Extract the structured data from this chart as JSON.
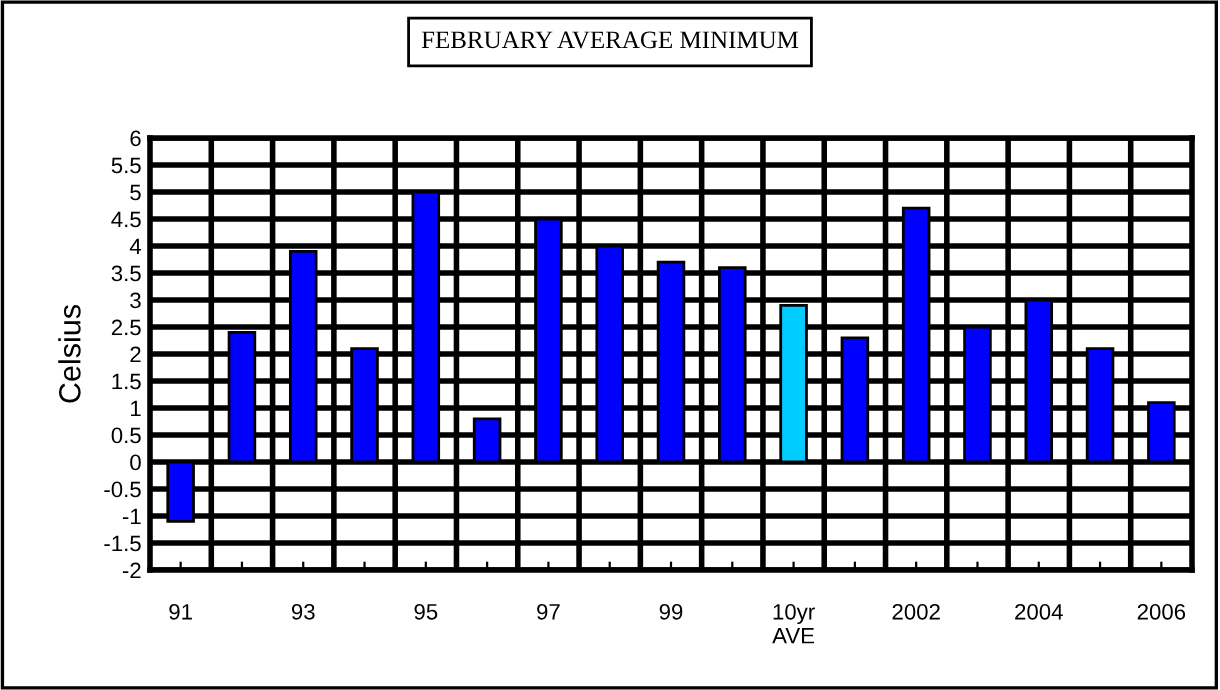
{
  "chart_data": {
    "type": "bar",
    "title": "FEBRUARY AVERAGE MINIMUM",
    "ylabel": "Celsius",
    "categories": [
      "91",
      null,
      "93",
      null,
      "95",
      null,
      "97",
      null,
      "99",
      null,
      "10yr\nAVE",
      null,
      "2002",
      null,
      "2004",
      null,
      "2006"
    ],
    "values": [
      -1.1,
      2.4,
      3.9,
      2.1,
      5.0,
      0.8,
      4.5,
      4.0,
      3.7,
      3.6,
      2.9,
      2.3,
      4.7,
      2.5,
      3.0,
      2.1,
      1.1
    ],
    "colors": [
      "#0000ff",
      "#0000ff",
      "#0000ff",
      "#0000ff",
      "#0000ff",
      "#0000ff",
      "#0000ff",
      "#0000ff",
      "#0000ff",
      "#0000ff",
      "#00ccff",
      "#0000ff",
      "#0000ff",
      "#0000ff",
      "#0000ff",
      "#0000ff",
      "#0000ff"
    ],
    "ylim": [
      -2,
      6
    ],
    "yticks": [
      -2,
      -1.5,
      -1,
      -0.5,
      0,
      0.5,
      1,
      1.5,
      2,
      2.5,
      3,
      3.5,
      4,
      4.5,
      5,
      5.5,
      6
    ],
    "grid": true,
    "legend": false
  }
}
